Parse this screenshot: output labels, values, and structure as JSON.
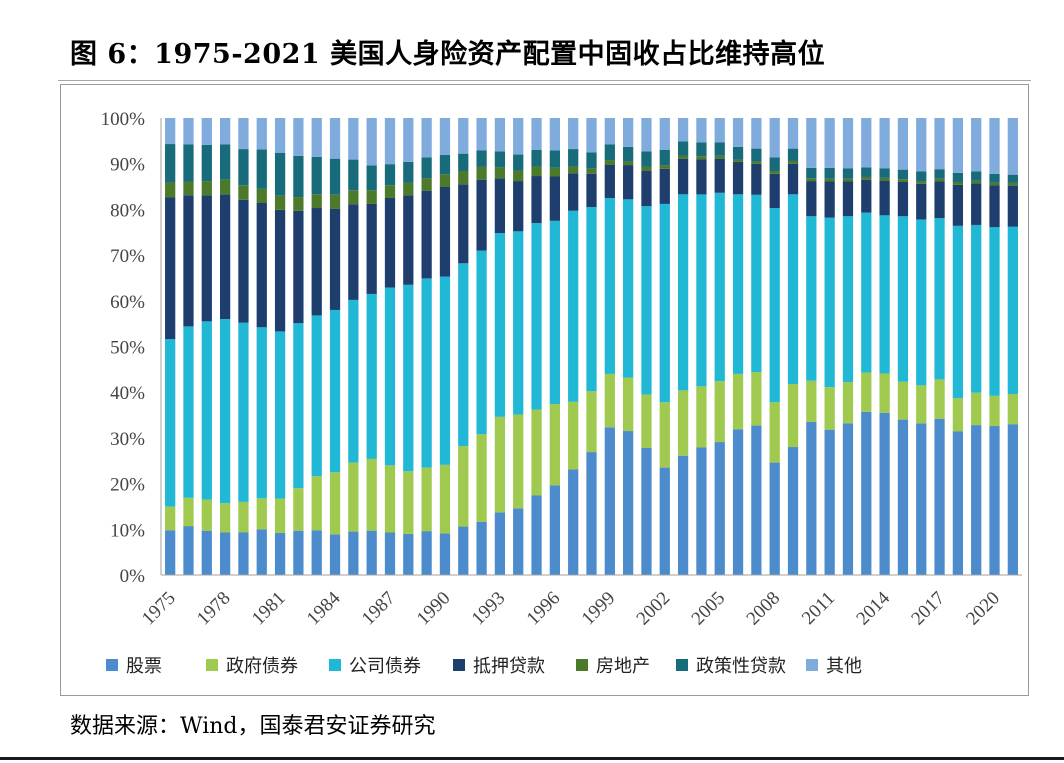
{
  "figure": {
    "title": "图 6：1975-2021 美国人身险资产配置中固收占比维持高位",
    "source": "数据来源：Wind，国泰君安证券研究"
  },
  "colors": {
    "stocks": "#4d8ccc",
    "gov_bonds": "#9fc94f",
    "corp_bonds": "#21b8d6",
    "mortgage": "#1e3e6e",
    "real_estate": "#4d7a2a",
    "policy_loans": "#176b7a",
    "other": "#7fabdd"
  },
  "chart_data": {
    "type": "bar",
    "stacked": true,
    "title": "",
    "xlabel": "",
    "ylabel": "",
    "ylim": [
      0,
      100
    ],
    "y_unit": "%",
    "y_ticks": [
      "0%",
      "10%",
      "20%",
      "30%",
      "40%",
      "50%",
      "60%",
      "70%",
      "80%",
      "90%",
      "100%"
    ],
    "x": [
      1975,
      1976,
      1977,
      1978,
      1979,
      1980,
      1981,
      1982,
      1983,
      1984,
      1985,
      1986,
      1987,
      1988,
      1989,
      1990,
      1991,
      1992,
      1993,
      1994,
      1995,
      1996,
      1997,
      1998,
      1999,
      2000,
      2001,
      2002,
      2003,
      2004,
      2005,
      2006,
      2007,
      2008,
      2009,
      2010,
      2011,
      2012,
      2013,
      2014,
      2015,
      2016,
      2017,
      2018,
      2019,
      2020,
      2021
    ],
    "x_tick_labels": [
      "1975",
      "1978",
      "1981",
      "1984",
      "1987",
      "1990",
      "1993",
      "1996",
      "1999",
      "2002",
      "2005",
      "2008",
      "2011",
      "2014",
      "2017",
      "2020"
    ],
    "grid": false,
    "legend_position": "bottom",
    "series": [
      {
        "name": "股票",
        "key": "stocks",
        "values": [
          9.8,
          10.7,
          9.7,
          9.3,
          9.3,
          10.0,
          9.2,
          9.7,
          9.8,
          8.9,
          9.5,
          9.7,
          9.3,
          9.0,
          9.6,
          9.1,
          10.6,
          11.6,
          13.7,
          14.6,
          17.4,
          19.6,
          23.1,
          26.9,
          32.3,
          31.5,
          27.8,
          23.5,
          26.1,
          27.7,
          28.8,
          31.9,
          32.7,
          24.6,
          28.0,
          33.5,
          31.8,
          33.2,
          35.7,
          35.5,
          34.0,
          33.2,
          34.2,
          31.4,
          32.8,
          32.6,
          33.0
        ]
      },
      {
        "name": "政府债券",
        "key": "gov_bonds",
        "values": [
          5.2,
          6.2,
          6.8,
          6.4,
          6.7,
          6.8,
          7.5,
          9.3,
          11.8,
          13.6,
          15.1,
          15.7,
          14.7,
          13.7,
          13.9,
          15.0,
          17.6,
          19.2,
          20.9,
          20.5,
          18.8,
          17.8,
          14.8,
          13.3,
          11.7,
          11.7,
          11.7,
          14.3,
          14.3,
          13.3,
          13.2,
          12.1,
          11.7,
          13.2,
          13.8,
          9.0,
          9.3,
          9.0,
          8.6,
          8.6,
          8.3,
          8.3,
          8.6,
          7.3,
          7.1,
          6.6,
          6.6
        ]
      },
      {
        "name": "公司债券",
        "key": "corp_bonds",
        "values": [
          36.6,
          37.5,
          39.0,
          40.3,
          39.2,
          37.4,
          36.6,
          36.1,
          35.2,
          35.5,
          35.6,
          36.1,
          38.9,
          40.8,
          41.4,
          41.2,
          40.0,
          40.2,
          40.2,
          40.1,
          40.8,
          40.1,
          41.8,
          40.3,
          38.5,
          39.0,
          41.2,
          43.4,
          42.9,
          41.7,
          40.8,
          39.3,
          38.8,
          42.5,
          41.5,
          36.0,
          37.1,
          36.3,
          35.0,
          34.6,
          36.2,
          36.3,
          35.3,
          37.7,
          36.7,
          36.9,
          36.6
        ]
      },
      {
        "name": "抵押贷款",
        "key": "mortgage",
        "values": [
          31.0,
          28.7,
          27.6,
          27.3,
          26.9,
          27.2,
          26.6,
          24.6,
          23.5,
          22.1,
          20.9,
          19.7,
          19.6,
          19.6,
          19.2,
          19.6,
          17.3,
          15.5,
          12.0,
          11.0,
          10.3,
          9.7,
          8.2,
          7.3,
          7.3,
          7.5,
          7.7,
          7.7,
          7.8,
          7.6,
          7.4,
          7.1,
          6.8,
          7.5,
          6.7,
          7.7,
          7.9,
          7.6,
          7.2,
          7.6,
          7.5,
          7.8,
          8.0,
          9.0,
          9.1,
          9.2,
          9.0
        ]
      },
      {
        "name": "房地产",
        "key": "real_estate",
        "values": [
          3.3,
          3.0,
          3.1,
          3.2,
          3.2,
          3.1,
          3.1,
          3.0,
          3.0,
          3.1,
          3.1,
          3.0,
          2.8,
          2.7,
          2.7,
          2.8,
          2.9,
          2.8,
          2.4,
          2.3,
          2.1,
          1.9,
          1.5,
          1.1,
          1.0,
          0.8,
          0.9,
          0.8,
          0.7,
          0.7,
          0.6,
          0.5,
          0.5,
          0.6,
          0.6,
          0.6,
          0.6,
          0.6,
          0.6,
          0.6,
          0.6,
          0.6,
          0.6,
          0.6,
          0.6,
          0.6,
          0.6
        ]
      },
      {
        "name": "政策性贷款",
        "key": "policy_loans",
        "values": [
          8.4,
          8.1,
          7.9,
          7.7,
          7.9,
          8.6,
          9.4,
          9.0,
          8.2,
          7.9,
          6.7,
          5.4,
          4.6,
          4.6,
          4.6,
          4.2,
          3.8,
          3.6,
          3.5,
          3.5,
          3.6,
          3.8,
          3.8,
          3.6,
          3.4,
          3.2,
          3.4,
          3.3,
          3.1,
          3.0,
          2.9,
          2.8,
          2.8,
          3.0,
          2.7,
          2.3,
          2.4,
          2.3,
          2.1,
          2.1,
          2.1,
          2.1,
          2.1,
          2.0,
          2.0,
          1.9,
          1.8
        ]
      },
      {
        "name": "其他",
        "key": "other",
        "values": [
          5.7,
          5.8,
          5.9,
          5.8,
          6.8,
          6.9,
          7.6,
          8.3,
          8.5,
          8.9,
          9.1,
          10.4,
          10.1,
          9.6,
          8.6,
          8.1,
          7.8,
          7.1,
          7.3,
          8.0,
          7.0,
          7.1,
          6.8,
          7.5,
          5.8,
          6.3,
          7.3,
          7.0,
          5.1,
          5.3,
          5.3,
          6.3,
          6.7,
          8.6,
          6.7,
          10.9,
          10.9,
          11.0,
          10.8,
          11.0,
          11.3,
          11.7,
          11.2,
          12.0,
          11.7,
          12.2,
          12.4
        ]
      }
    ]
  }
}
